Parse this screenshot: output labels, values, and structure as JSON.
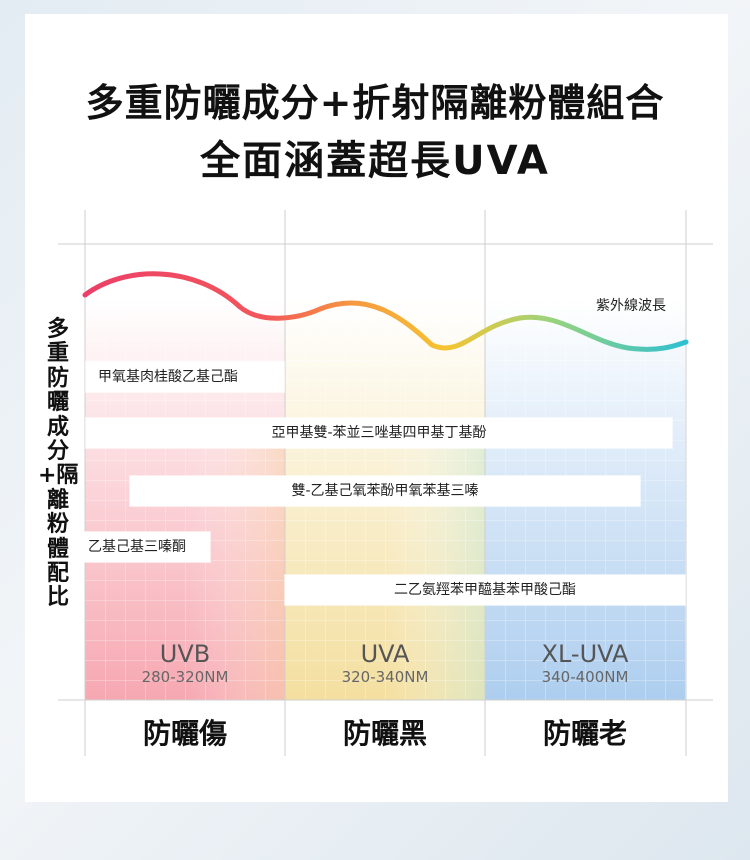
{
  "headline": {
    "line1": "多重防曬成分+折射隔離粉體組合",
    "line2": "全面涵蓋超長UVA"
  },
  "side_label": "多重防曬成分+隔離粉體配比",
  "wave_label": "紫外線波長",
  "ingredients": [
    "甲氧基肉桂酸乙基己酯",
    "亞甲基雙-苯並三唑基四甲基丁基酚",
    "雙-乙基己氧苯酚甲氧苯基三嗪",
    "乙基己基三嗪酮",
    "二乙氨羥苯甲醯基苯甲酸己酯"
  ],
  "bands": [
    {
      "name": "UVB",
      "range": "280-320NM",
      "effect": "防曬傷"
    },
    {
      "name": "UVA",
      "range": "320-340NM",
      "effect": "防曬黑"
    },
    {
      "name": "XL-UVA",
      "range": "340-400NM",
      "effect": "防曬老"
    }
  ],
  "colors": {
    "uvb": "#f6a3ad",
    "uva": "#f3dd9a",
    "xluva": "#a9cbee",
    "wave_start": "#ec3f68",
    "wave_mid": "#f6c431",
    "wave_end": "#2cc0d2"
  }
}
